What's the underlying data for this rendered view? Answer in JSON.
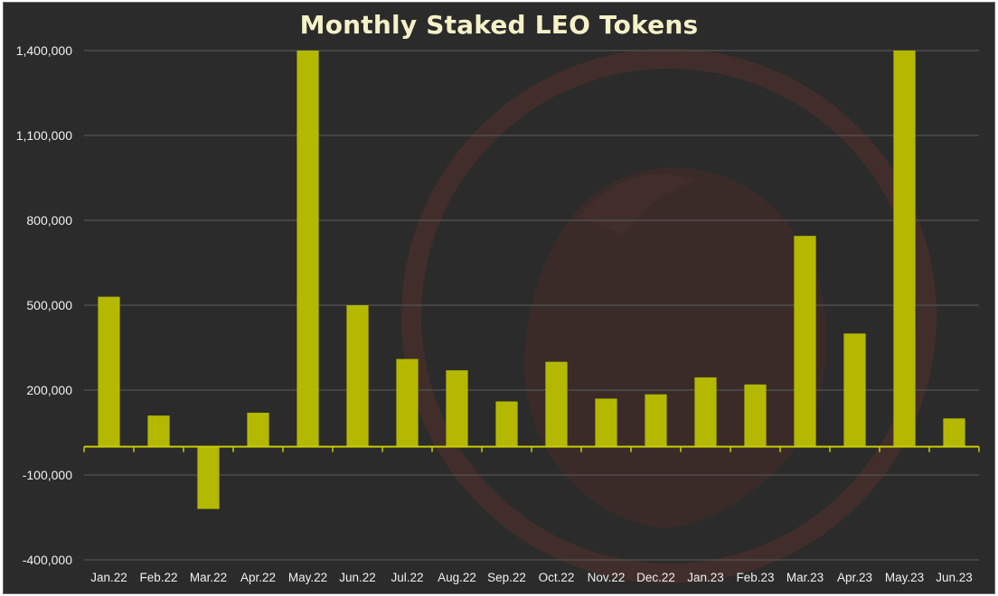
{
  "chart_data": {
    "type": "bar",
    "title": "Monthly Staked LEO Tokens",
    "xlabel": "",
    "ylabel": "",
    "ylim": [
      -400000,
      1400000
    ],
    "yticks": [
      -400000,
      -100000,
      200000,
      500000,
      800000,
      1100000,
      1400000
    ],
    "ytick_labels": [
      "-400,000",
      "-100,000",
      "200,000",
      "500,000",
      "800,000",
      "1,100,000",
      "1,400,000"
    ],
    "grid": true,
    "legend": "none",
    "bar_color": "#b5b800",
    "categories": [
      "Jan.22",
      "Feb.22",
      "Mar.22",
      "Apr.22",
      "May.22",
      "Jun.22",
      "Jul.22",
      "Aug.22",
      "Sep.22",
      "Oct.22",
      "Nov.22",
      "Dec.22",
      "Jan.23",
      "Feb.23",
      "Mar.23",
      "Apr.23",
      "May.23",
      "Jun.23"
    ],
    "values": [
      530000,
      110000,
      -220000,
      120000,
      1400000,
      500000,
      310000,
      270000,
      160000,
      300000,
      170000,
      185000,
      245000,
      220000,
      745000,
      400000,
      1400000,
      100000
    ]
  }
}
